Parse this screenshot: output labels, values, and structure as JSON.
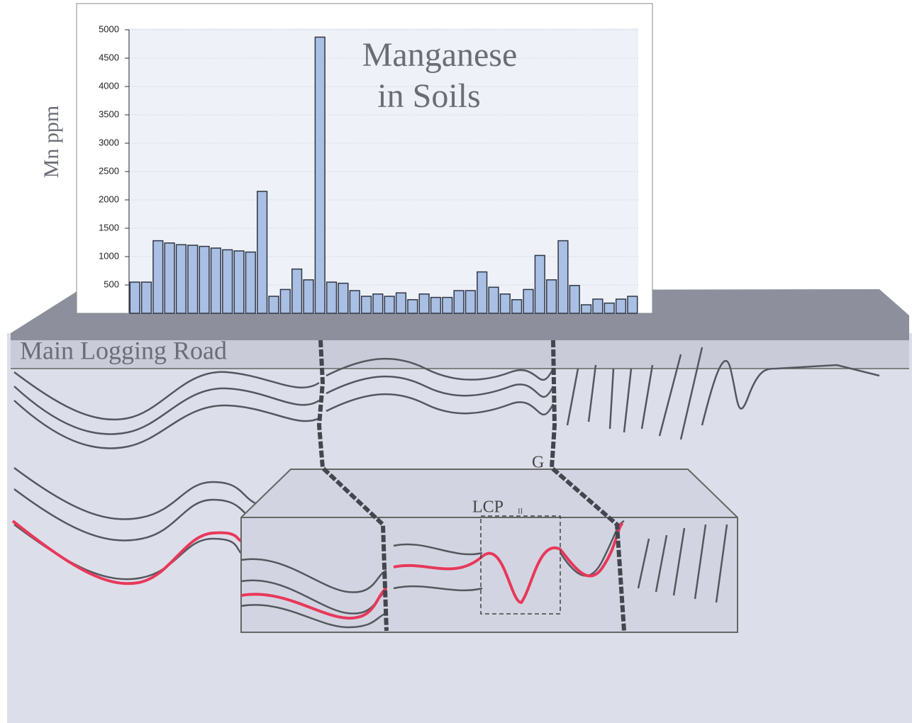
{
  "chart_data": {
    "type": "bar",
    "title": [
      "Manganese",
      "in Soils"
    ],
    "y_label": "Mn ppm",
    "values": [
      550,
      550,
      1280,
      1240,
      1210,
      1200,
      1180,
      1150,
      1120,
      1100,
      1080,
      2150,
      300,
      420,
      780,
      590,
      4870,
      550,
      530,
      400,
      300,
      340,
      300,
      360,
      240,
      340,
      280,
      280,
      400,
      400,
      730,
      460,
      340,
      240,
      420,
      1020,
      590,
      1280,
      490,
      150,
      250,
      180,
      250,
      300
    ],
    "color": "#a9bfe3",
    "ylim": [
      0,
      5000
    ],
    "yticks": [
      500,
      1000,
      1500,
      2000,
      2500,
      3000,
      3500,
      4000,
      4500,
      5000
    ],
    "grid": true
  },
  "diagram_labels": {
    "road": "Main Logging Road",
    "g": "G",
    "lcp": "LCP",
    "lcp_sub": "II"
  }
}
